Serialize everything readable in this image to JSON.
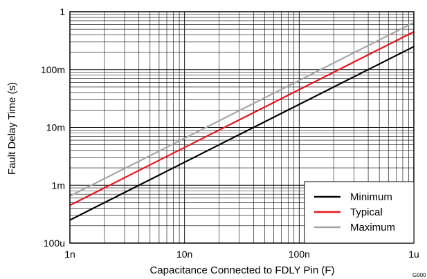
{
  "chart_data": {
    "type": "line",
    "xlabel": "Capacitance Connected to FDLY Pin (F)",
    "ylabel": "Fault Delay Time (s)",
    "x_scale": "log",
    "y_scale": "log",
    "xlim": [
      1e-09,
      1e-06
    ],
    "ylim": [
      0.0001,
      1
    ],
    "x_ticks": [
      {
        "value": 1e-09,
        "label": "1n"
      },
      {
        "value": 1e-08,
        "label": "10n"
      },
      {
        "value": 1e-07,
        "label": "100n"
      },
      {
        "value": 1e-06,
        "label": "1u"
      }
    ],
    "y_ticks": [
      {
        "value": 0.0001,
        "label": "100u"
      },
      {
        "value": 0.001,
        "label": "1m"
      },
      {
        "value": 0.01,
        "label": "10m"
      },
      {
        "value": 0.1,
        "label": "100m"
      },
      {
        "value": 1,
        "label": "1"
      }
    ],
    "grid": true,
    "legend_position": "bottom-right",
    "series": [
      {
        "name": "Minimum",
        "color": "#000000",
        "x": [
          1e-09,
          1e-06
        ],
        "y": [
          0.00025,
          0.25
        ]
      },
      {
        "name": "Typical",
        "color": "#e8141b",
        "x": [
          1e-09,
          1e-06
        ],
        "y": [
          0.00045,
          0.45
        ]
      },
      {
        "name": "Maximum",
        "color": "#a6a6a6",
        "x": [
          1e-09,
          1e-06
        ],
        "y": [
          0.00065,
          0.65
        ]
      }
    ],
    "figure_code": "G000"
  }
}
